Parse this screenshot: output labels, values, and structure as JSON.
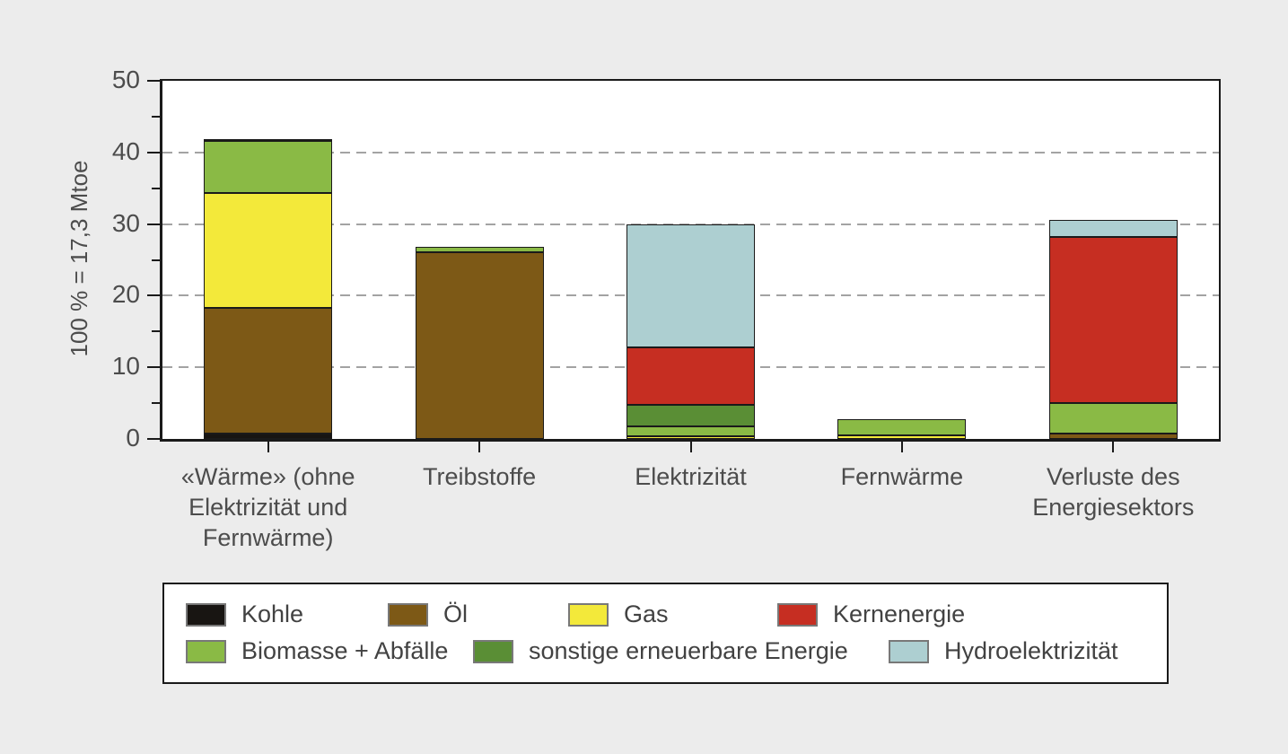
{
  "colors": {
    "page_background": "#ececec",
    "plot_background": "#ffffff",
    "axis": "#1a1a1a",
    "gridline": "#a3a3a3",
    "text": "#4c4c4c",
    "swatch_border": "#787878"
  },
  "chart_data": {
    "type": "bar",
    "stacked": true,
    "title": "",
    "xlabel": "",
    "ylabel": "100 % = 17,3 Mtoe",
    "ylim": [
      0,
      50
    ],
    "yticks": [
      0,
      10,
      20,
      30,
      40,
      50
    ],
    "yticks_minor": [
      5,
      15,
      25,
      35,
      45
    ],
    "grid_lines": [
      10,
      20,
      30,
      40
    ],
    "grid_style": "dashed horizontal",
    "legend_position": "bottom-box",
    "categories": [
      "«Wärme» (ohne\nElektrizität und\nFernwärme)",
      "Treibstoffe",
      "Elektrizität",
      "Fernwärme",
      "Verluste des\nEnergiesektors"
    ],
    "series": [
      {
        "name": "Kohle",
        "color": "#181512",
        "values": [
          0.7,
          0,
          0,
          0,
          0
        ]
      },
      {
        "name": "Öl",
        "color": "#7d5916",
        "values": [
          17.6,
          26.1,
          0,
          0,
          0.8
        ]
      },
      {
        "name": "Gas",
        "color": "#f3e93a",
        "values": [
          16.0,
          0,
          0.4,
          0.5,
          0
        ]
      },
      {
        "name": "Biomasse + Abfälle",
        "color": "#8aba45",
        "values": [
          7.3,
          0.7,
          1.4,
          2.2,
          4.2
        ]
      },
      {
        "name": "sonstige erneuerbare Energie",
        "color": "#5a8e35",
        "values": [
          0.3,
          0,
          3.0,
          0,
          0
        ]
      },
      {
        "name": "Kernenergie",
        "color": "#c62e22",
        "values": [
          0,
          0,
          8.0,
          0,
          23.2
        ]
      },
      {
        "name": "Hydroelektrizität",
        "color": "#adcfd1",
        "values": [
          0,
          0,
          17.2,
          0,
          2.4
        ]
      }
    ],
    "bar_totals": [
      41.9,
      26.8,
      30.0,
      2.7,
      30.6
    ]
  },
  "legend": {
    "rows": [
      [
        "Kohle",
        "Öl",
        "Gas",
        "Kernenergie"
      ],
      [
        "Biomasse + Abfälle",
        "sonstige erneuerbare Energie",
        "Hydroelektrizität"
      ]
    ]
  }
}
